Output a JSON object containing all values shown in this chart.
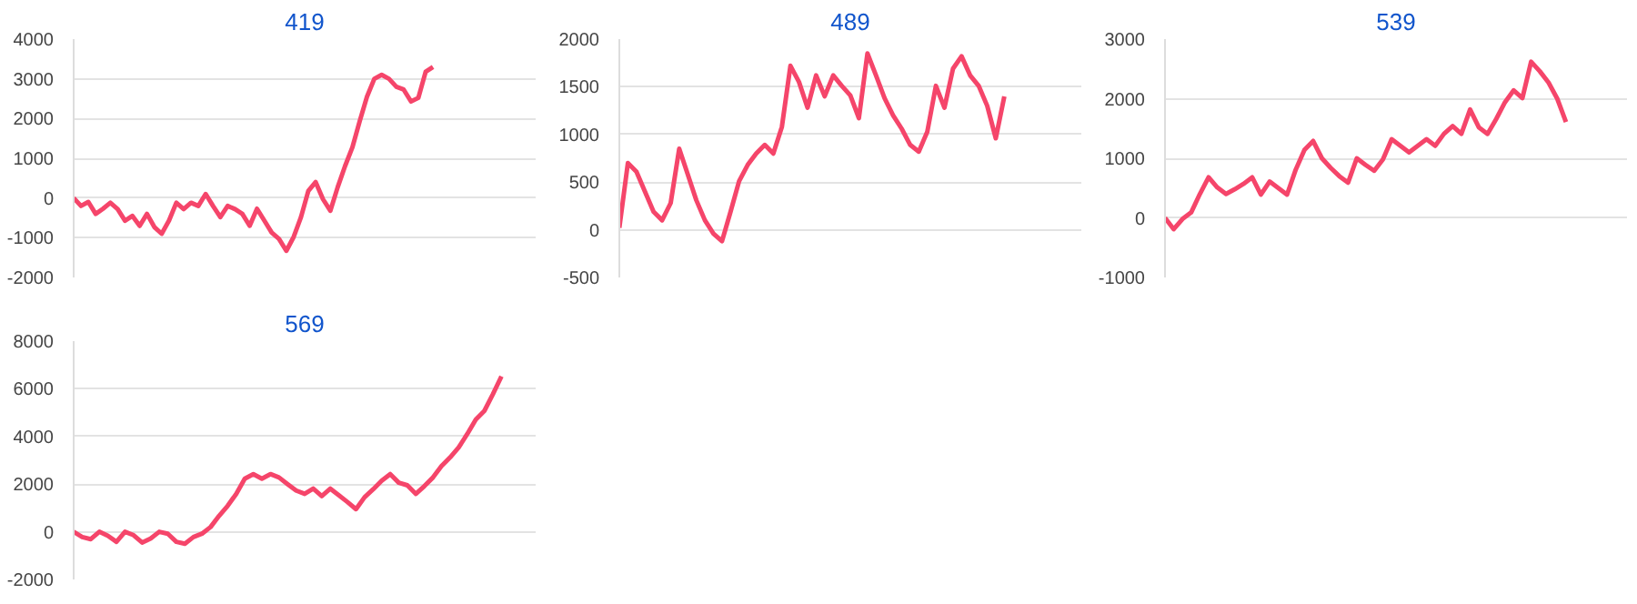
{
  "chart_data": [
    {
      "type": "line",
      "title": "419",
      "color": "#f5456a",
      "grid": "y",
      "ylim": [
        -2000,
        4000
      ],
      "yticks": [
        -2000,
        -1000,
        0,
        1000,
        2000,
        3000,
        4000
      ],
      "categories": [
        null,
        null,
        null,
        null,
        null,
        null,
        null,
        null,
        null,
        null,
        null,
        null,
        null,
        null,
        null,
        null,
        null,
        null,
        null,
        null,
        null,
        null,
        null,
        null,
        null,
        null,
        null,
        null,
        null,
        null,
        null,
        null,
        null,
        null,
        null,
        null,
        null,
        null,
        null,
        null,
        null,
        null,
        null,
        null,
        null,
        null,
        null,
        null,
        null,
        null,
        null,
        null,
        null,
        null,
        null,
        null,
        null,
        null,
        null,
        null,
        null,
        null,
        null,
        null
      ],
      "values": [
        0,
        -200,
        -100,
        -400,
        -270,
        -120,
        -280,
        -570,
        -450,
        -700,
        -400,
        -730,
        -900,
        -570,
        -120,
        -280,
        -120,
        -200,
        100,
        -200,
        -480,
        -200,
        -280,
        -400,
        -700,
        -270,
        -570,
        -870,
        -1030,
        -1330,
        -980,
        -480,
        180,
        400,
        -30,
        -320,
        270,
        800,
        1270,
        1930,
        2550,
        3000,
        3100,
        3000,
        2800,
        2730,
        2430,
        2520,
        3180,
        3300,
        null,
        null,
        null,
        null,
        null,
        null,
        null,
        null,
        null,
        null,
        null,
        null,
        null,
        null
      ]
    },
    {
      "type": "line",
      "title": "489",
      "color": "#f5456a",
      "grid": "y",
      "ylim": [
        -500,
        2000
      ],
      "yticks": [
        -500,
        0,
        500,
        1000,
        1500,
        2000
      ],
      "categories": [
        null,
        null,
        null,
        null,
        null,
        null,
        null,
        null,
        null,
        null,
        null,
        null,
        null,
        null,
        null,
        null,
        null,
        null,
        null,
        null,
        null,
        null,
        null,
        null,
        null,
        null,
        null,
        null,
        null,
        null,
        null,
        null,
        null,
        null,
        null,
        null,
        null,
        null,
        null,
        null,
        null,
        null,
        null,
        null,
        null,
        null,
        null,
        null,
        null,
        null,
        null,
        null,
        null,
        null,
        null
      ],
      "values": [
        20,
        700,
        610,
        400,
        190,
        100,
        280,
        850,
        580,
        310,
        100,
        -40,
        -120,
        190,
        510,
        680,
        800,
        890,
        800,
        1080,
        1720,
        1550,
        1280,
        1620,
        1400,
        1620,
        1510,
        1410,
        1170,
        1850,
        1620,
        1380,
        1200,
        1060,
        890,
        820,
        1030,
        1510,
        1280,
        1690,
        1820,
        1620,
        1510,
        1300,
        960,
        1400,
        null,
        null,
        null,
        null,
        null,
        null,
        null,
        null,
        null
      ]
    },
    {
      "type": "line",
      "title": "539",
      "color": "#f5456a",
      "grid": "y",
      "ylim": [
        -1000,
        3000
      ],
      "yticks": [
        -1000,
        0,
        1000,
        2000,
        3000
      ],
      "categories": [
        null,
        null,
        null,
        null,
        null,
        null,
        null,
        null,
        null,
        null,
        null,
        null,
        null,
        null,
        null,
        null,
        null,
        null,
        null,
        null,
        null,
        null,
        null,
        null,
        null,
        null,
        null,
        null,
        null,
        null,
        null,
        null,
        null,
        null,
        null,
        null,
        null,
        null,
        null,
        null,
        null,
        null,
        null,
        null,
        null,
        null,
        null,
        null,
        null,
        null,
        null,
        null,
        null,
        null
      ],
      "values": [
        0,
        -190,
        -20,
        90,
        400,
        680,
        510,
        400,
        480,
        570,
        680,
        390,
        610,
        500,
        390,
        810,
        1140,
        1290,
        1000,
        840,
        700,
        590,
        1000,
        890,
        790,
        980,
        1320,
        1210,
        1100,
        1210,
        1320,
        1210,
        1410,
        1540,
        1410,
        1820,
        1520,
        1410,
        1660,
        1940,
        2140,
        2010,
        2620,
        2460,
        2270,
        2000,
        1610,
        null,
        null,
        null,
        null,
        null,
        null,
        null
      ]
    },
    {
      "type": "line",
      "title": "569",
      "color": "#f5456a",
      "grid": "y",
      "ylim": [
        -2000,
        8000
      ],
      "yticks": [
        -2000,
        0,
        2000,
        4000,
        6000,
        8000
      ],
      "categories": [
        null,
        null,
        null,
        null,
        null,
        null,
        null,
        null,
        null,
        null,
        null,
        null,
        null,
        null,
        null,
        null,
        null,
        null,
        null,
        null,
        null,
        null,
        null,
        null,
        null,
        null,
        null,
        null,
        null,
        null,
        null,
        null,
        null,
        null,
        null,
        null,
        null,
        null,
        null,
        null,
        null,
        null,
        null,
        null,
        null,
        null,
        null,
        null,
        null,
        null,
        null,
        null,
        null,
        null,
        null
      ],
      "values": [
        0,
        -220,
        -310,
        0,
        -170,
        -420,
        0,
        -140,
        -450,
        -280,
        0,
        -80,
        -420,
        -500,
        -220,
        -80,
        200,
        670,
        1090,
        1590,
        2230,
        2420,
        2230,
        2420,
        2280,
        2000,
        1730,
        1590,
        1810,
        1500,
        1810,
        1530,
        1250,
        950,
        1450,
        1780,
        2140,
        2420,
        2060,
        1950,
        1590,
        1920,
        2280,
        2760,
        3120,
        3540,
        4100,
        4710,
        5070,
        5770,
        6520,
        null,
        null,
        null,
        null
      ]
    }
  ]
}
